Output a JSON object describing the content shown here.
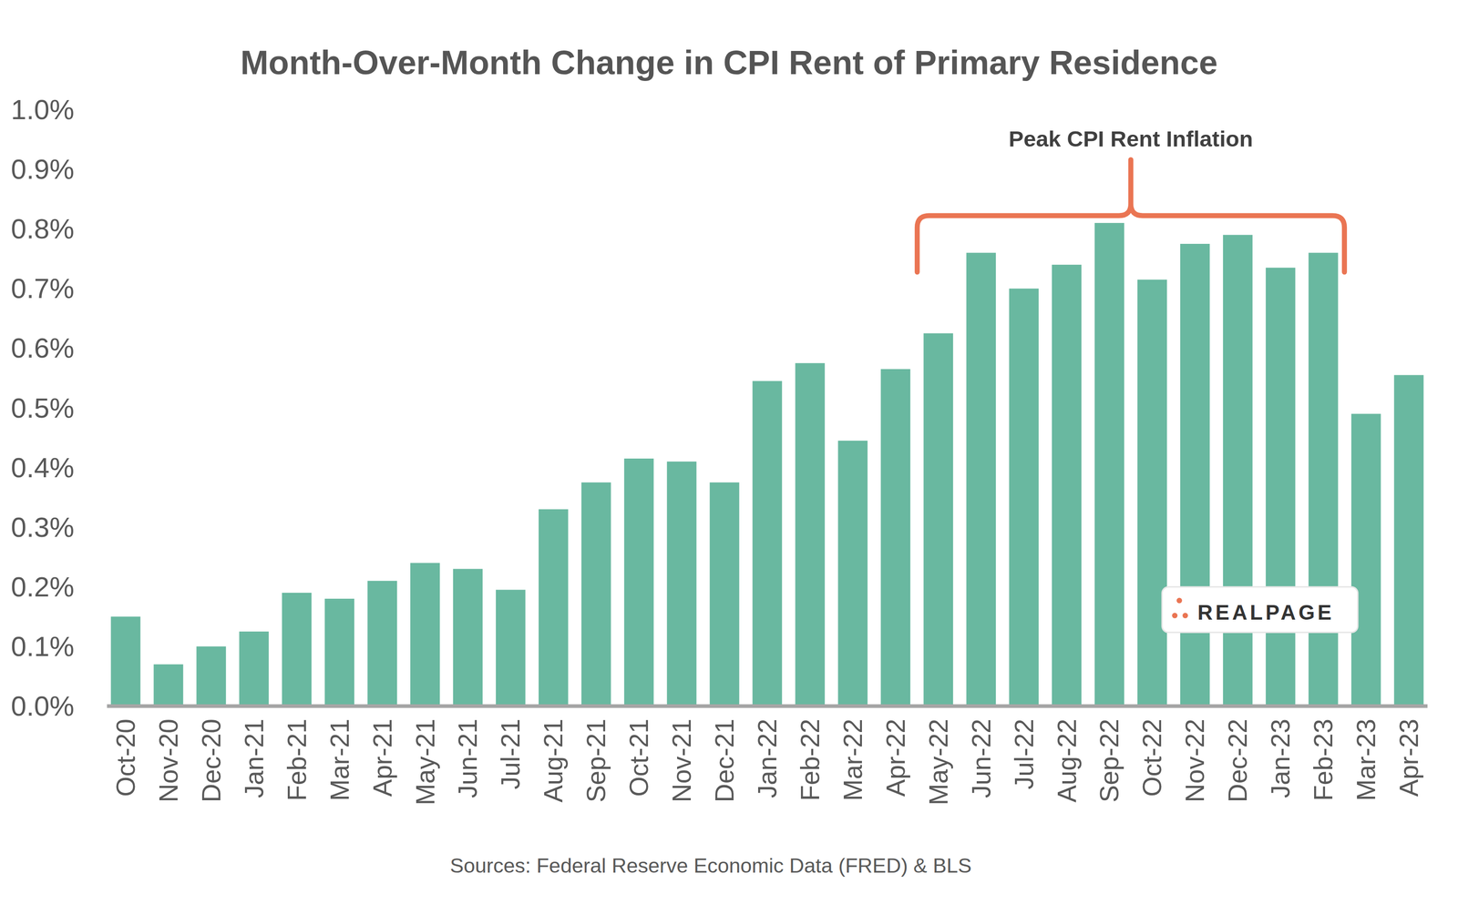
{
  "chart_data": {
    "type": "bar",
    "title": "Month-Over-Month Change in CPI Rent of Primary Residence",
    "categories": [
      "Oct-20",
      "Nov-20",
      "Dec-20",
      "Jan-21",
      "Feb-21",
      "Mar-21",
      "Apr-21",
      "May-21",
      "Jun-21",
      "Jul-21",
      "Aug-21",
      "Sep-21",
      "Oct-21",
      "Nov-21",
      "Dec-21",
      "Jan-22",
      "Feb-22",
      "Mar-22",
      "Apr-22",
      "May-22",
      "Jun-22",
      "Jul-22",
      "Aug-22",
      "Sep-22",
      "Oct-22",
      "Nov-22",
      "Dec-22",
      "Jan-23",
      "Feb-23",
      "Mar-23",
      "Apr-23"
    ],
    "values": [
      0.15,
      0.07,
      0.1,
      0.125,
      0.19,
      0.18,
      0.21,
      0.24,
      0.23,
      0.195,
      0.33,
      0.375,
      0.415,
      0.41,
      0.375,
      0.545,
      0.575,
      0.445,
      0.565,
      0.625,
      0.76,
      0.7,
      0.74,
      0.81,
      0.715,
      0.775,
      0.79,
      0.735,
      0.76,
      0.49,
      0.555
    ],
    "color": "#69b8a0",
    "ylim": [
      0,
      1.0
    ],
    "yticks": [
      {
        "value": 0,
        "label": "0.0%"
      },
      {
        "value": 0.1,
        "label": "0.1%"
      },
      {
        "value": 0.2,
        "label": "0.2%"
      },
      {
        "value": 0.3,
        "label": "0.3%"
      },
      {
        "value": 0.4,
        "label": "0.4%"
      },
      {
        "value": 0.5,
        "label": "0.5%"
      },
      {
        "value": 0.6,
        "label": "0.6%"
      },
      {
        "value": 0.7,
        "label": "0.7%"
      },
      {
        "value": 0.8,
        "label": "0.8%"
      },
      {
        "value": 0.9,
        "label": "0.9%"
      },
      {
        "value": 1.0,
        "label": "1.0%"
      }
    ],
    "grid": false,
    "annotations": [
      {
        "text": "Peak CPI Rent Inflation",
        "from": "May-22",
        "to": "Feb-23"
      }
    ],
    "logo": "REALPAGE",
    "source": "Sources: Federal Reserve Economic Data (FRED) & BLS"
  }
}
